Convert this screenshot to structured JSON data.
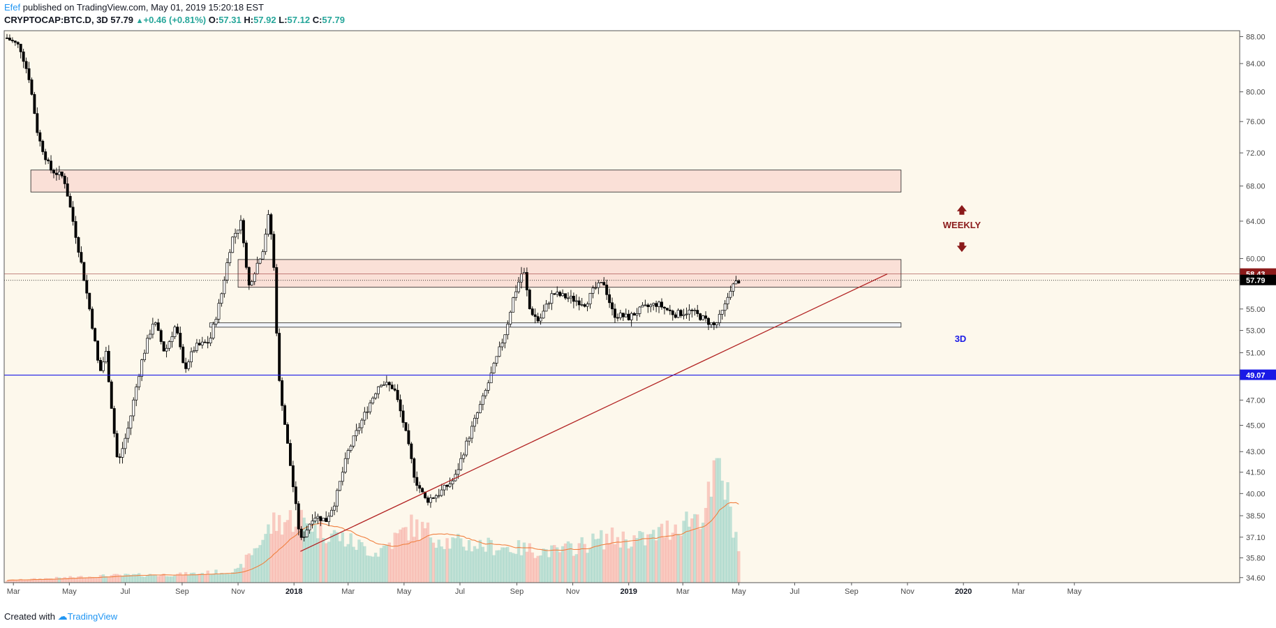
{
  "header": {
    "author": "Efef",
    "published": "published on TradingView.com, May 01, 2019 15:20:18 EST",
    "symbol": "CRYPTOCAP:BTC.D, 3D",
    "last": "57.79",
    "change_arrow": "▲",
    "change": "+0.46 (+0.81%)",
    "open_label": "O:",
    "open": "57.31",
    "high_label": "H:",
    "high": "57.92",
    "low_label": "L:",
    "low": "57.12",
    "close_label": "C:",
    "close": "57.79"
  },
  "footer": {
    "created_with": "Created with",
    "brand": "TradingView",
    "logo_icon": "tradingview-cloud-icon"
  },
  "colors": {
    "up": "#26a69a",
    "down": "#ef5350",
    "zone_fill": "#f9dcd3",
    "support": "#1a1ae6",
    "trend": "#b22222",
    "weekly": "#8b1a1a",
    "background": "#fdf8ec"
  },
  "annotations": {
    "weekly_label": "WEEKLY",
    "weekly_up_arrow": "🡅",
    "weekly_down_arrow": "🡇",
    "timeframe_label": "3D"
  },
  "chart_data": {
    "type": "candlestick",
    "title": "",
    "xlabel": "",
    "ylabel": "",
    "ylim": [
      34.3,
      88.9
    ],
    "y_scale": "log",
    "y_ticks": [
      "88.00",
      "84.00",
      "80.00",
      "76.00",
      "72.00",
      "68.00",
      "64.00",
      "60.00",
      "55.00",
      "53.00",
      "51.00",
      "47.00",
      "45.00",
      "43.00",
      "41.50",
      "40.00",
      "38.50",
      "37.10",
      "35.80",
      "34.60"
    ],
    "x_ticks": [
      "Mar",
      "May",
      "Jul",
      "Sep",
      "Nov",
      "2018",
      "Mar",
      "May",
      "Jul",
      "Sep",
      "Nov",
      "2019",
      "Mar",
      "May",
      "Jul",
      "Sep",
      "Nov",
      "2020",
      "Mar",
      "May"
    ],
    "price_labels": [
      {
        "value": 58.43,
        "text": "58.43",
        "color": "#8b1a1a"
      },
      {
        "value": 57.79,
        "text": "57.79",
        "color": "#000000"
      },
      {
        "value": 49.07,
        "text": "49.07",
        "color": "#1a1ae6"
      }
    ],
    "anchors": [
      {
        "date": "2017-02-22",
        "price": 87.8
      },
      {
        "date": "2017-03-08",
        "price": 86.5
      },
      {
        "date": "2017-03-18",
        "price": 82
      },
      {
        "date": "2017-03-28",
        "price": 74
      },
      {
        "date": "2017-04-10",
        "price": 70
      },
      {
        "date": "2017-04-25",
        "price": 69
      },
      {
        "date": "2017-05-05",
        "price": 64
      },
      {
        "date": "2017-05-13",
        "price": 60
      },
      {
        "date": "2017-05-25",
        "price": 54
      },
      {
        "date": "2017-06-03",
        "price": 49.2
      },
      {
        "date": "2017-06-10",
        "price": 51
      },
      {
        "date": "2017-06-18",
        "price": 45
      },
      {
        "date": "2017-06-23",
        "price": 42
      },
      {
        "date": "2017-07-05",
        "price": 45
      },
      {
        "date": "2017-07-18",
        "price": 50
      },
      {
        "date": "2017-08-01",
        "price": 54
      },
      {
        "date": "2017-08-13",
        "price": 51
      },
      {
        "date": "2017-08-25",
        "price": 53.5
      },
      {
        "date": "2017-09-03",
        "price": 49.5
      },
      {
        "date": "2017-09-15",
        "price": 51.5
      },
      {
        "date": "2017-10-01",
        "price": 52
      },
      {
        "date": "2017-10-13",
        "price": 56
      },
      {
        "date": "2017-10-25",
        "price": 62
      },
      {
        "date": "2017-11-05",
        "price": 64
      },
      {
        "date": "2017-11-12",
        "price": 57
      },
      {
        "date": "2017-11-20",
        "price": 59
      },
      {
        "date": "2017-11-28",
        "price": 61
      },
      {
        "date": "2017-12-05",
        "price": 65
      },
      {
        "date": "2017-12-10",
        "price": 59
      },
      {
        "date": "2017-12-15",
        "price": 49
      },
      {
        "date": "2017-12-24",
        "price": 44
      },
      {
        "date": "2018-01-01",
        "price": 40
      },
      {
        "date": "2018-01-08",
        "price": 36.8
      },
      {
        "date": "2018-01-14",
        "price": 37.5
      },
      {
        "date": "2018-01-22",
        "price": 38.5
      },
      {
        "date": "2018-02-05",
        "price": 38.2
      },
      {
        "date": "2018-02-15",
        "price": 39.5
      },
      {
        "date": "2018-03-01",
        "price": 43
      },
      {
        "date": "2018-03-20",
        "price": 46
      },
      {
        "date": "2018-04-05",
        "price": 48.5
      },
      {
        "date": "2018-04-20",
        "price": 48
      },
      {
        "date": "2018-05-01",
        "price": 45
      },
      {
        "date": "2018-05-13",
        "price": 41
      },
      {
        "date": "2018-05-25",
        "price": 39.5
      },
      {
        "date": "2018-06-08",
        "price": 40
      },
      {
        "date": "2018-06-25",
        "price": 41
      },
      {
        "date": "2018-07-10",
        "price": 44
      },
      {
        "date": "2018-07-28",
        "price": 47.5
      },
      {
        "date": "2018-08-10",
        "price": 50.5
      },
      {
        "date": "2018-08-20",
        "price": 53
      },
      {
        "date": "2018-08-28",
        "price": 56
      },
      {
        "date": "2018-09-08",
        "price": 59
      },
      {
        "date": "2018-09-15",
        "price": 55
      },
      {
        "date": "2018-09-25",
        "price": 53.8
      },
      {
        "date": "2018-10-10",
        "price": 56.5
      },
      {
        "date": "2018-10-30",
        "price": 56
      },
      {
        "date": "2018-11-15",
        "price": 55.5
      },
      {
        "date": "2018-11-25",
        "price": 57
      },
      {
        "date": "2018-12-05",
        "price": 57.5
      },
      {
        "date": "2018-12-15",
        "price": 54.5
      },
      {
        "date": "2019-01-01",
        "price": 54.2
      },
      {
        "date": "2019-01-15",
        "price": 55
      },
      {
        "date": "2019-02-01",
        "price": 55.5
      },
      {
        "date": "2019-02-20",
        "price": 54.5
      },
      {
        "date": "2019-03-10",
        "price": 54.8
      },
      {
        "date": "2019-03-25",
        "price": 54
      },
      {
        "date": "2019-04-05",
        "price": 53.4
      },
      {
        "date": "2019-04-15",
        "price": 55
      },
      {
        "date": "2019-04-22",
        "price": 57
      },
      {
        "date": "2019-05-01",
        "price": 57.79
      }
    ],
    "volume_anchors": [
      {
        "date": "2017-02-22",
        "v": 0.02
      },
      {
        "date": "2017-06-15",
        "v": 0.06
      },
      {
        "date": "2017-09-01",
        "v": 0.07
      },
      {
        "date": "2017-11-01",
        "v": 0.1
      },
      {
        "date": "2017-12-10",
        "v": 0.5
      },
      {
        "date": "2018-01-05",
        "v": 0.55
      },
      {
        "date": "2018-02-15",
        "v": 0.4
      },
      {
        "date": "2018-04-01",
        "v": 0.25
      },
      {
        "date": "2018-05-10",
        "v": 0.48
      },
      {
        "date": "2018-06-20",
        "v": 0.34
      },
      {
        "date": "2018-08-15",
        "v": 0.3
      },
      {
        "date": "2018-10-15",
        "v": 0.26
      },
      {
        "date": "2018-12-10",
        "v": 0.38
      },
      {
        "date": "2019-01-20",
        "v": 0.36
      },
      {
        "date": "2019-02-25",
        "v": 0.5
      },
      {
        "date": "2019-03-25",
        "v": 0.6
      },
      {
        "date": "2019-04-10",
        "v": 1.0
      },
      {
        "date": "2019-05-01",
        "v": 0.3
      }
    ],
    "zones": [
      {
        "name": "upper-resistance-zone",
        "from_date": "2017-03-20",
        "to_date": "2019-10-25",
        "low": 67.3,
        "high": 69.9,
        "fill": "#f9dcd3"
      },
      {
        "name": "mid-resistance-zone",
        "from_date": "2017-11-01",
        "to_date": "2019-10-25",
        "low": 57.1,
        "high": 59.9,
        "fill": "#f9dcd3"
      },
      {
        "name": "support-zone-3d",
        "from_date": "2017-10-01",
        "to_date": "2019-10-25",
        "low": 53.3,
        "high": 53.7,
        "fill": "#eef3fb"
      }
    ],
    "lines": [
      {
        "name": "trend-line",
        "from_date": "2018-01-08",
        "from_price": 36.2,
        "to_date": "2019-10-10",
        "to_price": 58.43,
        "color": "#b22222"
      },
      {
        "name": "support-line",
        "price": 49.07,
        "color": "#1a1ae6"
      },
      {
        "name": "price-line-dotted",
        "price": 57.79,
        "color": "#000000"
      }
    ]
  }
}
